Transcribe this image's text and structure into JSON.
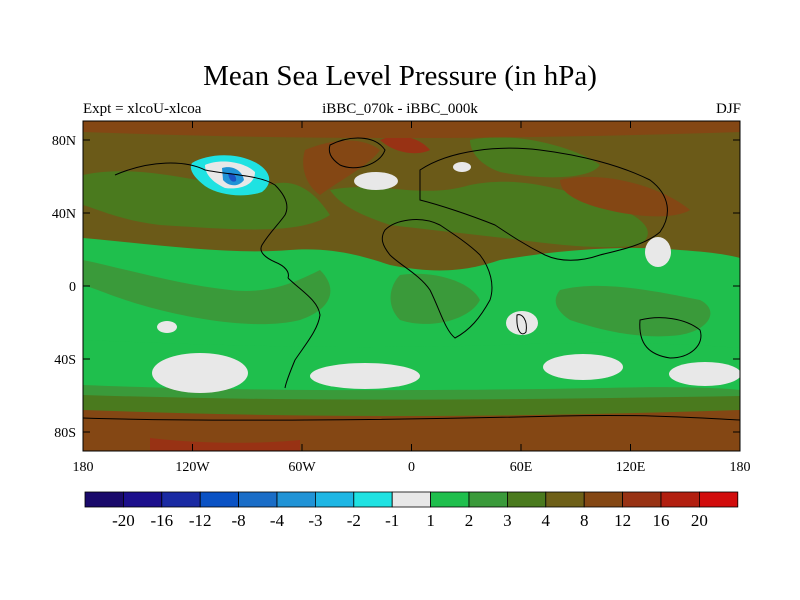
{
  "map": {
    "title": "Mean Sea Level Pressure (in hPa)",
    "left_label": "Expt = xlcoU-xlcoa",
    "center_label": "iBBC_070k - iBBC_000k",
    "right_label": "DJF",
    "lon_ticks": [
      "180",
      "120W",
      "60W",
      "0",
      "60E",
      "120E",
      "180"
    ],
    "lat_ticks": [
      "80N",
      "40N",
      "0",
      "40S",
      "80S"
    ],
    "colorbar": {
      "colors": [
        "#1a0a6b",
        "#1c0f8c",
        "#1a2aa3",
        "#0a52c4",
        "#1a6dc7",
        "#2093d6",
        "#1eb6e4",
        "#1fe2e2",
        "#e8e8e8",
        "#1fbf4d",
        "#3a9a3a",
        "#4a7a1e",
        "#6e6018",
        "#844714",
        "#983214",
        "#b21f10",
        "#d10c0c"
      ],
      "labels": [
        "-20",
        "-16",
        "-12",
        "-8",
        "-4",
        "-3",
        "-2",
        "-1",
        "1",
        "2",
        "3",
        "4",
        "8",
        "12",
        "16",
        "20"
      ]
    },
    "colors": {
      "brown": "#6b5a18",
      "olive_green": "#4a7a1e",
      "mid_green": "#3a9a3a",
      "bright_green": "#1fbf4d",
      "white_gray": "#e8e8e8",
      "rust": "#844714",
      "red": "#b21f10",
      "blue": "#1a6dc7",
      "cyan": "#1eb6e4"
    }
  }
}
